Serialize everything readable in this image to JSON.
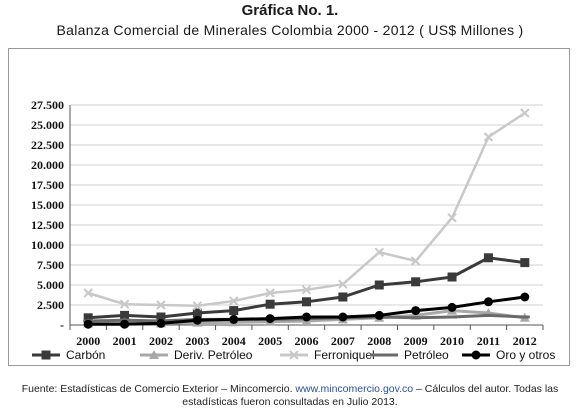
{
  "title": "Gráfica No. 1.",
  "subtitle": "Balanza Comercial de Minerales Colombia 2000 - 2012 ( US$ Millones )",
  "source": {
    "line1_pre": "Fuente: Estadísticas de Comercio Exterior – Mincomercio.",
    "link": "www.mincomercio.gov.co",
    "line1_post": "– Cálculos del autor. Todas las",
    "line2": "estadísticas fueron consultadas en Julio 2013."
  },
  "chart_data": {
    "type": "line",
    "title": "Balanza Comercial de Minerales Colombia 2000 - 2012 ( US$ Millones )",
    "xlabel": "",
    "ylabel": "",
    "x": [
      "2000",
      "2001",
      "2002",
      "2003",
      "2004",
      "2005",
      "2006",
      "2007",
      "2008",
      "2009",
      "2010",
      "2011",
      "2012"
    ],
    "ylim": [
      0,
      27500
    ],
    "yticks": [
      "-",
      "2.500",
      "5.000",
      "7.500",
      "10.000",
      "12.500",
      "15.000",
      "17.500",
      "20.000",
      "22.500",
      "25.000",
      "27.500"
    ],
    "ytick_values": [
      0,
      2500,
      5000,
      7500,
      10000,
      12500,
      15000,
      17500,
      20000,
      22500,
      25000,
      27500
    ],
    "grid": "horizontal",
    "legend": "bottom",
    "series": [
      {
        "name": "Carbón",
        "color": "#3a3a3a",
        "marker": "square",
        "values": [
          900,
          1200,
          1000,
          1500,
          1800,
          2600,
          2900,
          3500,
          5000,
          5400,
          6000,
          8400,
          7800
        ]
      },
      {
        "name": "Deriv. Petróleo",
        "color": "#a8a8a8",
        "marker": "triangle",
        "values": [
          200,
          300,
          200,
          300,
          350,
          400,
          500,
          700,
          900,
          1200,
          1800,
          1500,
          900
        ]
      },
      {
        "name": "Ferroniquel",
        "color": "#c8c8c8",
        "marker": "x",
        "values": [
          4000,
          2600,
          2500,
          2400,
          3000,
          4000,
          4400,
          5100,
          9100,
          8000,
          13400,
          23500,
          26500
        ]
      },
      {
        "name": "Petróleo",
        "color": "#6a6a6a",
        "marker": "dash",
        "values": [
          500,
          600,
          500,
          700,
          700,
          700,
          800,
          900,
          1000,
          900,
          1000,
          1200,
          1000
        ]
      },
      {
        "name": "Oro y otros",
        "color": "#000000",
        "marker": "circle",
        "values": [
          100,
          100,
          200,
          600,
          700,
          800,
          1000,
          1000,
          1200,
          1800,
          2200,
          2900,
          3500
        ]
      }
    ]
  }
}
